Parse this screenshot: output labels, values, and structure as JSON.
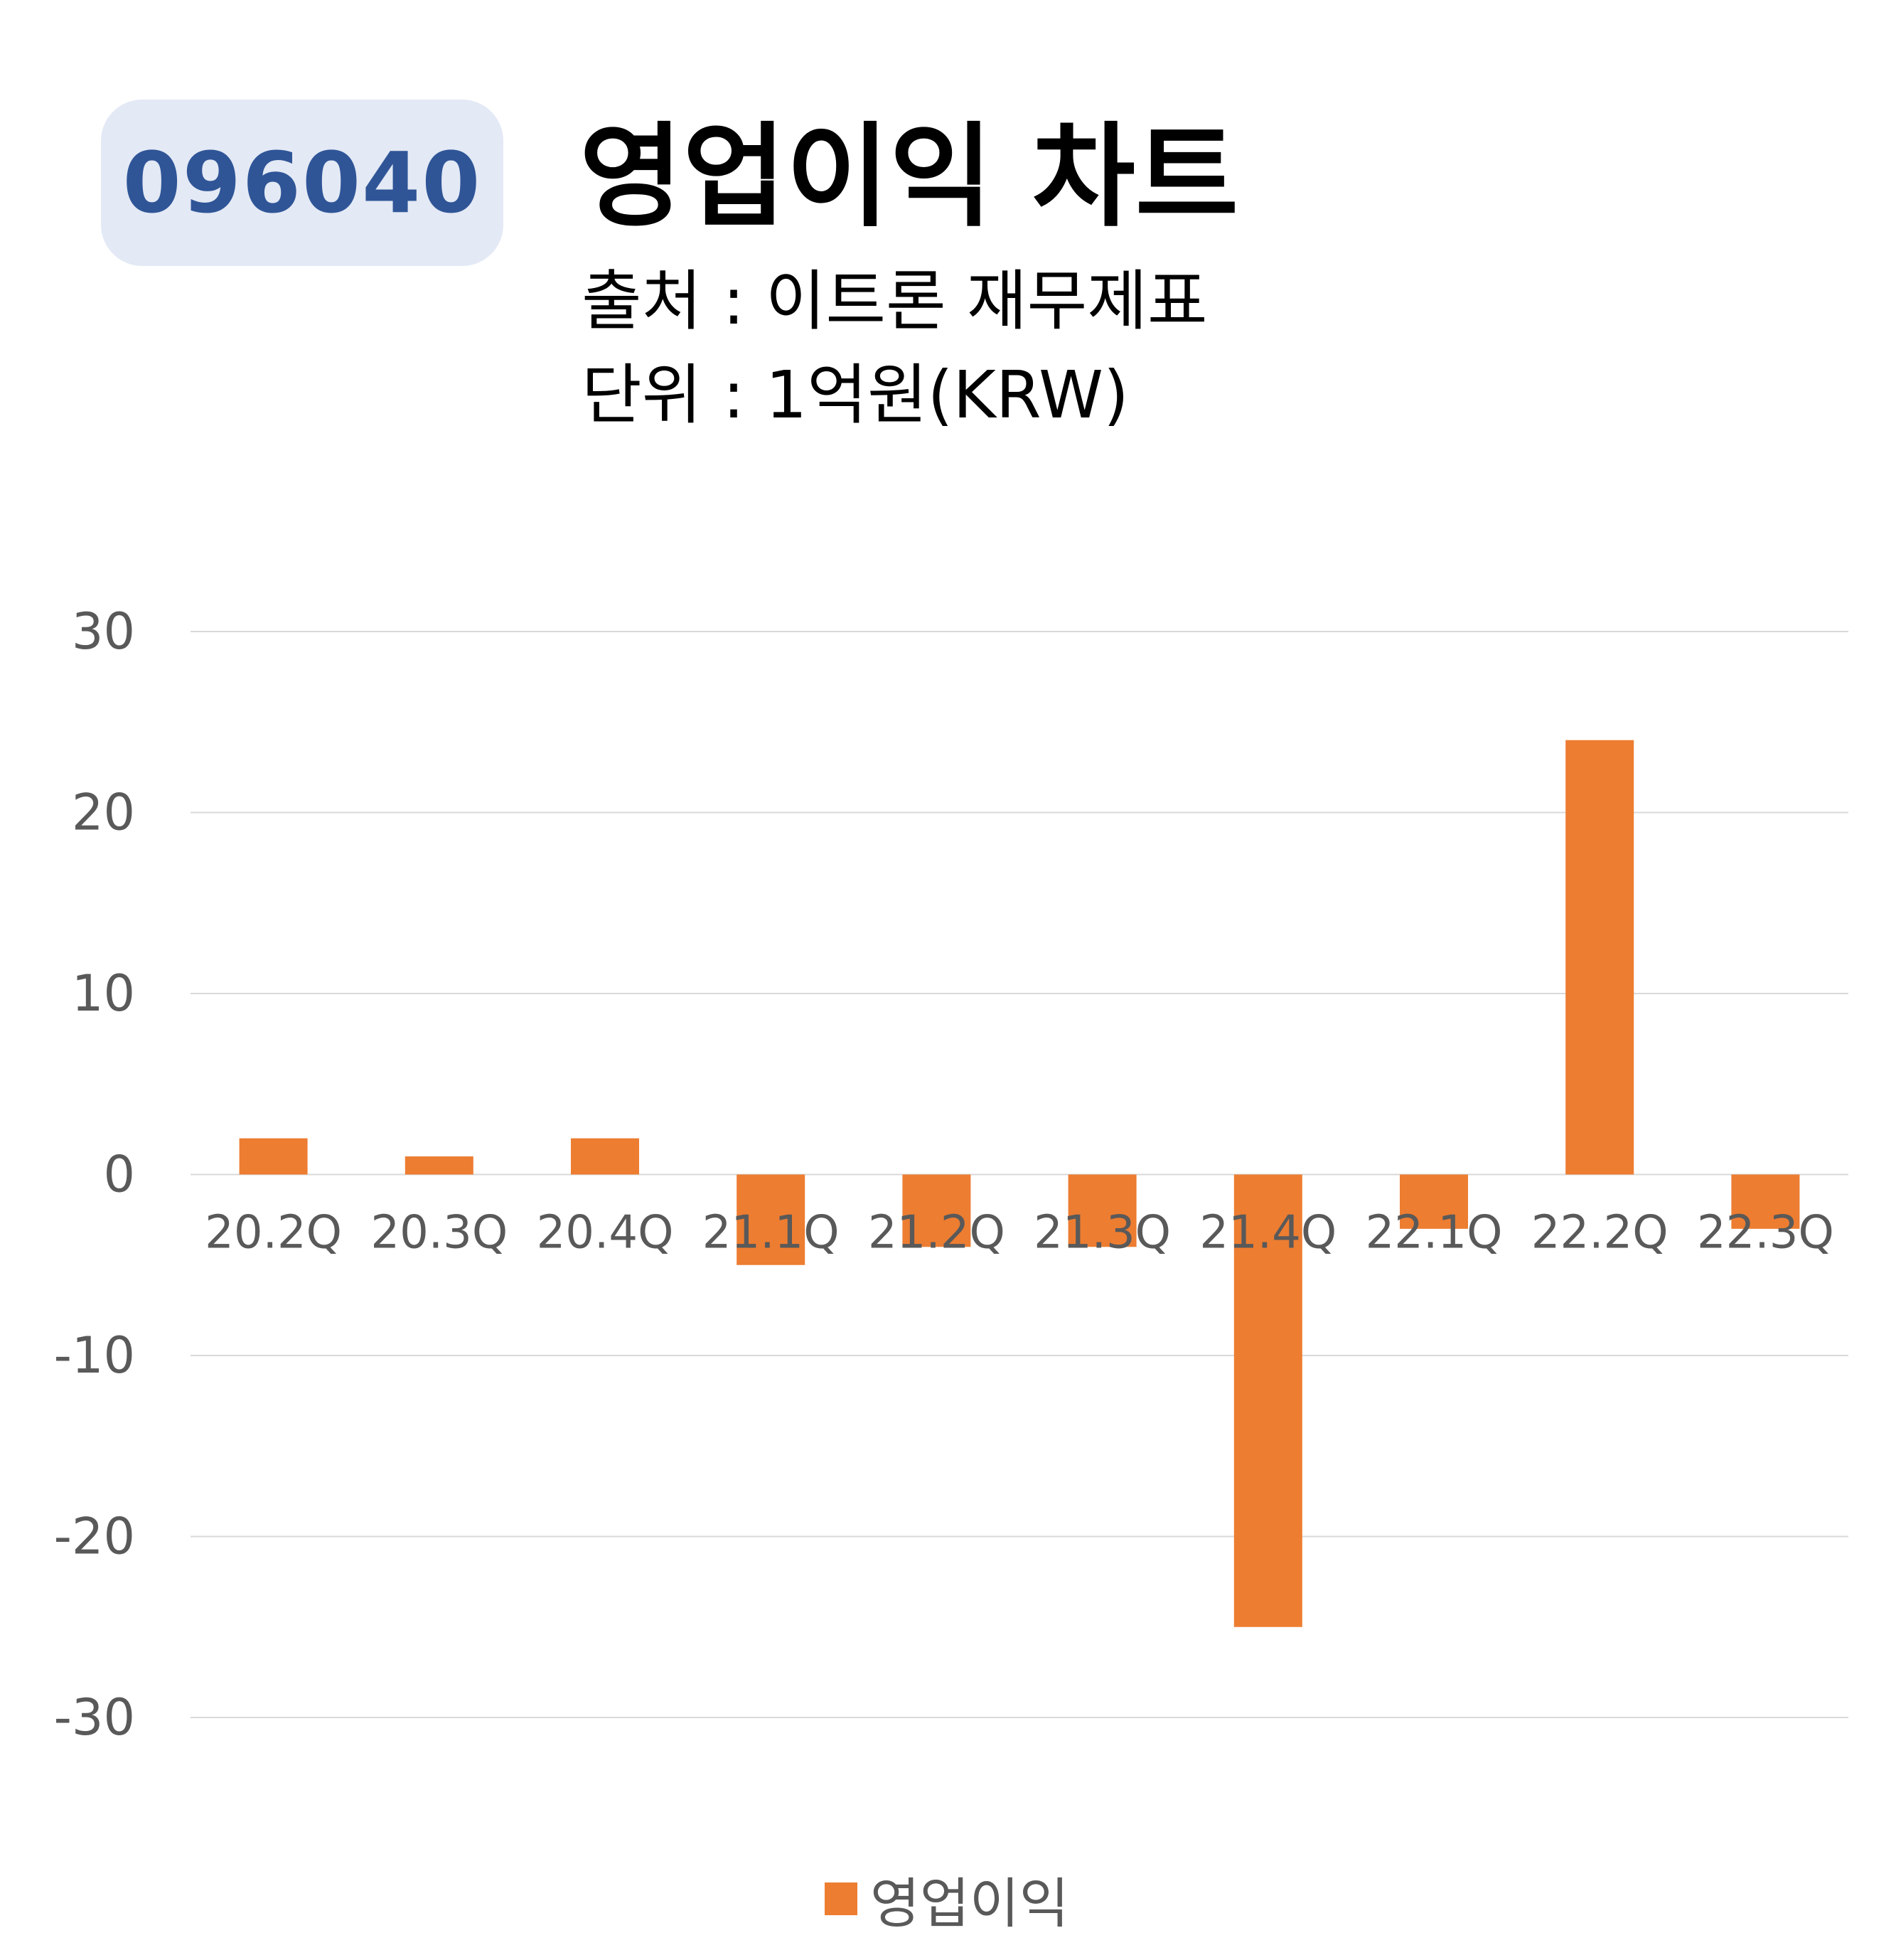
{
  "header": {
    "code": "096040",
    "title": "영업이익 차트",
    "source": "출처 : 이트론 재무제표",
    "unit": "단위 : 1억원(KRW)"
  },
  "colors": {
    "bar": "#ed7d31",
    "badge_bg": "#e3e9f5",
    "badge_text": "#2f5597",
    "grid": "#d9d9d9"
  },
  "chart_data": {
    "type": "bar",
    "categories": [
      "20.2Q",
      "20.3Q",
      "20.4Q",
      "21.1Q",
      "21.2Q",
      "21.3Q",
      "21.4Q",
      "22.1Q",
      "22.2Q",
      "22.3Q"
    ],
    "series": [
      {
        "name": "영업이익",
        "values": [
          2,
          1,
          2,
          -5,
          -4,
          -4,
          -25,
          -3,
          24,
          -3
        ]
      }
    ],
    "ylim": [
      -30,
      30
    ],
    "yticks": [
      30,
      20,
      10,
      0,
      -10,
      -20,
      -30
    ],
    "grid": true,
    "legend": "bottom-center"
  }
}
